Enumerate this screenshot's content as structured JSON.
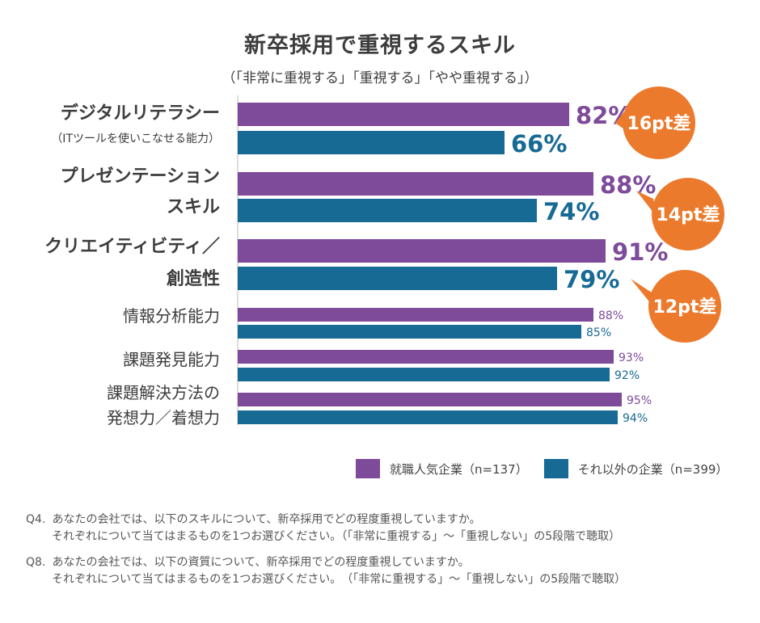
{
  "chart_data": {
    "type": "bar",
    "orientation": "horizontal",
    "title": "新卒採用で重視するスキル",
    "subtitle": "（「非常に重視する」「重視する」「やや重視する」）",
    "categories": [
      [
        "デジタルリテラシー",
        "（ITツールを使いこなせる能力）"
      ],
      [
        "プレゼンテーション",
        "スキル"
      ],
      [
        "クリエイティビティ／",
        "創造性"
      ],
      [
        "情報分析能力"
      ],
      [
        "課題発見能力"
      ],
      [
        "課題解決方法の",
        "発想力／着想力"
      ]
    ],
    "series": [
      {
        "name": "就職人気企業（n=137）",
        "color": "#7e4a9a",
        "values": [
          82,
          88,
          91,
          88,
          93,
          95
        ]
      },
      {
        "name": "それ以外の企業（n=399）",
        "color": "#176a94",
        "values": [
          66,
          74,
          79,
          85,
          92,
          94
        ]
      }
    ],
    "value_labels": {
      "series1": [
        "82%",
        "88%",
        "91%",
        "88%",
        "93%",
        "95%"
      ],
      "series2": [
        "66%",
        "74%",
        "79%",
        "85%",
        "92%",
        "94%"
      ]
    },
    "difference_callouts": [
      "16pt差",
      "14pt差",
      "12pt差"
    ],
    "callout_color": "#ec7a2c",
    "xlim": [
      0,
      100
    ],
    "grid": false,
    "legend_position": "bottom-right"
  },
  "notes": [
    {
      "label": "Q4.",
      "line1": "あなたの会社では、以下のスキルについて、新卒採用でどの程度重視していますか。",
      "line2": "それぞれについて当てはまるものを1つお選びください。（「非常に重視する」〜「重視しない」の5段階で聴取）"
    },
    {
      "label": "Q8.",
      "line1": "あなたの会社では、以下の資質について、新卒採用でどの程度重視していますか。",
      "line2": "それぞれについて当てはまるものを1つお選びください。　（「非常に重視する」〜「重視しない」の5段階で聴取）"
    }
  ]
}
